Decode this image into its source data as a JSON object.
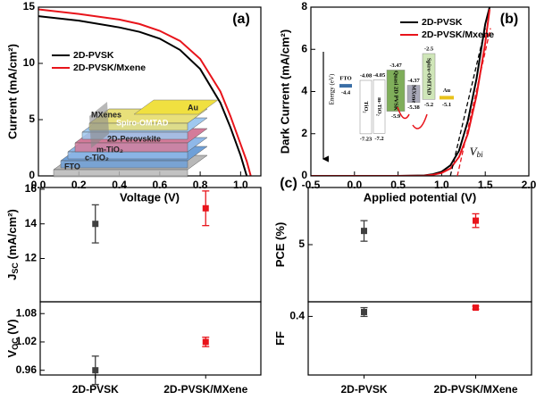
{
  "chart_data": [
    {
      "type": "line",
      "panel_label": "(a)",
      "xlabel": "Voltage (V)",
      "ylabel": "Current (mA/cm²)",
      "x": [
        0,
        0.2,
        0.4,
        0.5,
        0.6,
        0.7,
        0.8,
        0.9,
        0.95,
        1.0,
        1.03,
        1.05
      ],
      "series": [
        {
          "name": "2D-PVSK",
          "color": "#000000",
          "values": [
            14.2,
            13.8,
            13.2,
            12.8,
            12.2,
            11.2,
            9.5,
            6.5,
            4.3,
            1.8,
            0,
            null
          ]
        },
        {
          "name": "2D-PVSK/Mxene",
          "color": "#e8141b",
          "values": [
            14.8,
            14.4,
            13.9,
            13.5,
            12.9,
            12.0,
            10.4,
            7.5,
            5.3,
            2.8,
            1.3,
            0
          ]
        }
      ],
      "xlim": [
        0,
        1.1
      ],
      "xticks": [
        {
          "value": 0,
          "label": "0.0"
        },
        0.2,
        0.4,
        0.6,
        0.8,
        {
          "value": 1,
          "label": "1.0"
        }
      ],
      "ylim": [
        0,
        15
      ],
      "yticks": [
        0,
        5,
        10,
        15
      ],
      "legend": "center left",
      "inset_labels": [
        "Au",
        "Spiro-OMTAD",
        "MXenes",
        "2D-Perovskite",
        "m-TiO₂",
        "c-TiO₂",
        "FTO"
      ]
    },
    {
      "type": "line",
      "panel_label": "(b)",
      "xlabel": "Applied potential (V)",
      "ylabel": "Dark Current (mA/cm²)",
      "x": [
        -0.5,
        0,
        0.5,
        0.8,
        0.9,
        1.0,
        1.1,
        1.2,
        1.3,
        1.4,
        1.5,
        1.55
      ],
      "series": [
        {
          "name": "2D-PVSK",
          "color": "#000000",
          "values": [
            0,
            0,
            0,
            0.02,
            0.08,
            0.2,
            0.5,
            1.2,
            2.6,
            4.6,
            7.2,
            8
          ]
        },
        {
          "name": "2D-PVSK/Mxene",
          "color": "#e8141b",
          "values": [
            0,
            0,
            0,
            0.01,
            0.05,
            0.14,
            0.35,
            0.9,
            2.0,
            3.8,
            6.3,
            7.9
          ]
        }
      ],
      "tangents": [
        {
          "color": "#000000",
          "x": [
            1.1,
            1.5
          ],
          "y": [
            0,
            7
          ]
        },
        {
          "color": "#e8141b",
          "x": [
            1.18,
            1.56
          ],
          "y": [
            0,
            7
          ]
        }
      ],
      "vbi": {
        "main": "V",
        "sub": "bi"
      },
      "xlim": [
        -0.5,
        2.0
      ],
      "xticks": [
        -0.5,
        {
          "value": 0,
          "label": "0.0"
        },
        0.5,
        {
          "value": 1,
          "label": "1.0"
        },
        1.5,
        {
          "value": 2,
          "label": "2.0"
        }
      ],
      "ylim": [
        0,
        8
      ],
      "yticks": [
        0,
        2,
        4,
        6,
        8
      ],
      "legend": "upper center",
      "energy": {
        "axis_label": "Energy (eV)",
        "levels": [
          {
            "name": "FTO",
            "top": -4.4,
            "color": "#3a6ea5"
          },
          {
            "name": "TiO₂",
            "top": -4.08,
            "bottom": -7.23,
            "color": "#ffffff"
          },
          {
            "name": "m-TiO₂",
            "top": -4.05,
            "bottom": -7.2,
            "color": "#ffffff"
          },
          {
            "name": "Quasi 2D PVSK",
            "top": -3.47,
            "bottom": -5.9,
            "color": "#7fae5a"
          },
          {
            "name": "MXene",
            "top": -4.37,
            "bottom": -5.38,
            "color": "#a9a9b8"
          },
          {
            "name": "Spiro-OMTAD",
            "top": -2.5,
            "bottom": -5.2,
            "color": "#cfe6b8"
          },
          {
            "name": "Au",
            "top": -5.1,
            "color": "#e8c21a"
          }
        ]
      }
    },
    {
      "type": "errorbar",
      "ylabel": {
        "main": "J",
        "sub": "SC",
        "rest": " (mA/cm²)"
      },
      "series": [
        {
          "colors": [
            "#404040",
            "#e8141b"
          ],
          "values": [
            14.0,
            14.9
          ],
          "errors": [
            1.1,
            1.0
          ]
        }
      ],
      "ylim": [
        9.5,
        16.1
      ],
      "yticks": [
        12,
        14,
        16
      ]
    },
    {
      "type": "errorbar",
      "ylabel": {
        "main": "V",
        "sub": "OC",
        "rest": " (V)"
      },
      "categories": [
        "2D-PVSK",
        "2D-PVSK/MXene"
      ],
      "series": [
        {
          "colors": [
            "#404040",
            "#e8141b"
          ],
          "values": [
            0.96,
            1.02
          ],
          "errors": [
            0.03,
            0.01
          ]
        }
      ],
      "ylim": [
        0.95,
        1.105
      ],
      "yticks": [
        {
          "value": 0.96,
          "label": "0.96"
        },
        {
          "value": 1.02,
          "label": "1.02"
        },
        {
          "value": 1.08,
          "label": "1.08"
        }
      ]
    },
    {
      "type": "errorbar",
      "panel_label": "(c)",
      "ylabel": {
        "main": "PCE (%)"
      },
      "series": [
        {
          "colors": [
            "#404040",
            "#e8141b"
          ],
          "values": [
            6.2,
            7.1
          ],
          "errors": [
            0.9,
            0.6
          ]
        }
      ],
      "ylim": [
        0,
        10
      ],
      "yticks": [
        5
      ]
    },
    {
      "type": "errorbar",
      "ylabel": {
        "main": "FF"
      },
      "categories": [
        "2D-PVSK",
        "2D-PVSK/MXene"
      ],
      "series": [
        {
          "colors": [
            "#404040",
            "#e8141b"
          ],
          "values": [
            0.43,
            0.46
          ],
          "errors": [
            0.03,
            0.01
          ]
        }
      ],
      "ylim": [
        0,
        0.5
      ],
      "yticks": [
        0.4
      ]
    }
  ]
}
